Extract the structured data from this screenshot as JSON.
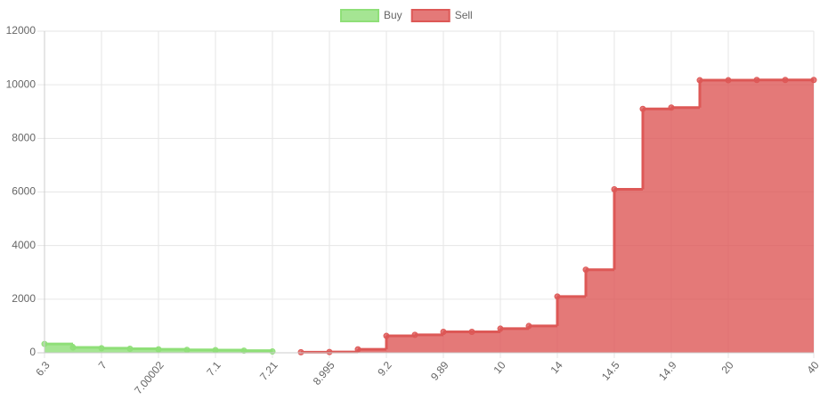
{
  "chart_data": {
    "type": "stepped-area",
    "categories": [
      "6.3",
      null,
      "7",
      null,
      "7.00002",
      null,
      "7.1",
      null,
      "7.21",
      null,
      "8.995",
      null,
      "9.2",
      null,
      "9.89",
      null,
      "10",
      null,
      "14",
      null,
      "14.5",
      null,
      "14.9",
      null,
      "20",
      null,
      null,
      "40"
    ],
    "series": [
      {
        "name": "Buy",
        "color": "#8fdf78",
        "values": [
          330,
          200,
          170,
          150,
          130,
          110,
          100,
          80,
          50,
          null,
          null,
          null,
          null,
          null,
          null,
          null,
          null,
          null,
          null,
          null,
          null,
          null,
          null,
          null,
          null,
          null,
          null,
          null
        ]
      },
      {
        "name": "Sell",
        "color": "#dd5856",
        "values": [
          null,
          null,
          null,
          null,
          null,
          null,
          null,
          null,
          null,
          20,
          30,
          130,
          630,
          670,
          780,
          780,
          900,
          1000,
          2100,
          3100,
          6100,
          9100,
          9150,
          10170,
          10170,
          10180,
          10180,
          10180
        ]
      }
    ],
    "ylim": [
      0,
      12000
    ],
    "yticks": [
      0,
      2000,
      4000,
      6000,
      8000,
      10000,
      12000
    ],
    "grid": true,
    "legend": "top"
  }
}
